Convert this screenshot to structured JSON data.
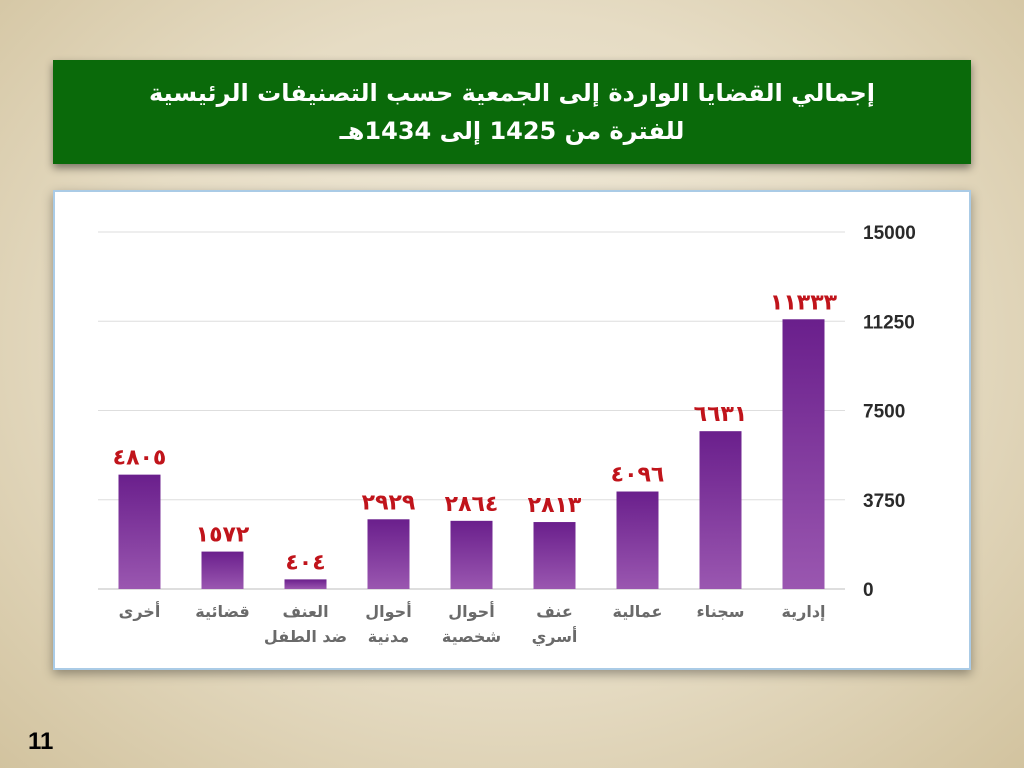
{
  "slide": {
    "title_line1": "إجمالي القضايا الواردة إلى الجمعية حسب التصنيفات الرئيسية",
    "title_line2": "للفترة من 1425 إلى 1434هـ",
    "page_number": "11"
  },
  "colors": {
    "title_background": "#0a6a0a",
    "bar": "#7a2c98",
    "data_label": "#c0141b"
  },
  "chart_data": {
    "type": "bar",
    "categories": [
      [
        "إدارية"
      ],
      [
        "سجناء"
      ],
      [
        "عمالية"
      ],
      [
        "عنف",
        "أسري"
      ],
      [
        "أحوال",
        "شخصية"
      ],
      [
        "أحوال",
        "مدنية"
      ],
      [
        "العنف",
        "ضد الطفل"
      ],
      [
        "قضائية"
      ],
      [
        "أخرى"
      ]
    ],
    "values": [
      11333,
      6631,
      4096,
      2813,
      2864,
      2929,
      404,
      1572,
      4805
    ],
    "value_labels": [
      "١١٣٣٣",
      "٦٦٣١",
      "٤٠٩٦",
      "٢٨١٣",
      "٢٨٦٤",
      "٢٩٢٩",
      "٤٠٤",
      "١٥٧٢",
      "٤٨٠٥"
    ],
    "yticks": [
      "0",
      "3750",
      "7500",
      "11250",
      "15000"
    ],
    "ylim": [
      0,
      15000
    ],
    "grid": true,
    "y_axis_side": "right",
    "category_order": "right-to-left"
  }
}
